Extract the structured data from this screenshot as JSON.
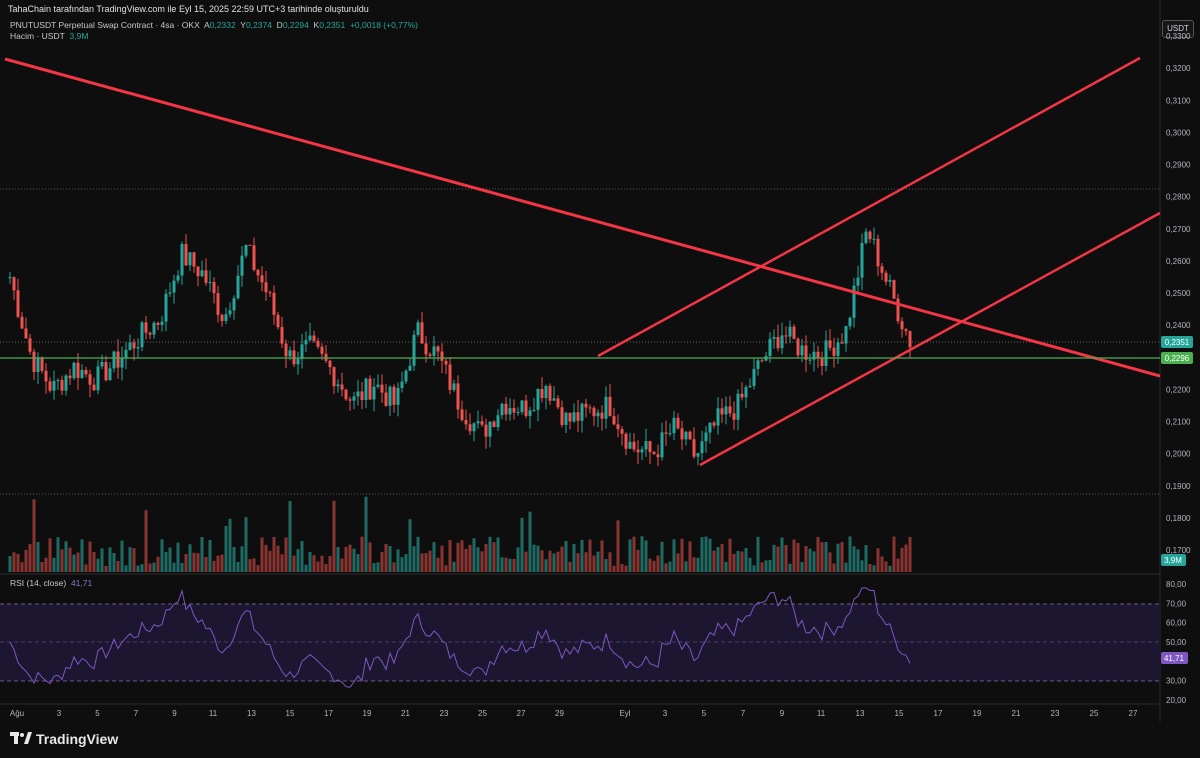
{
  "header": {
    "attribution": "TahaChain tarafından TradingView.com ile Eyl 15, 2025 22:59 UTC+3 tarihinde oluşturuldu"
  },
  "legend": {
    "symbol": "PNUTUSDT Perpetual Swap Contract · 4sa · OKX",
    "open_label": "A",
    "open": "0,2332",
    "high_label": "Y",
    "high": "0,2374",
    "low_label": "D",
    "low": "0,2294",
    "close_label": "K",
    "close": "0,2351",
    "change": "+0,0018 (+0,77%)",
    "volume_label": "Hacim · USDT",
    "volume_value": "3,9M"
  },
  "currency_button": "USDT",
  "price_axis": {
    "ticks": [
      "0,3300",
      "0,3200",
      "0,3100",
      "0,3000",
      "0,2900",
      "0,2800",
      "0,2700",
      "0,2600",
      "0,2500",
      "0,2400",
      "0,2200",
      "0,2100",
      "0,2000",
      "0,1900",
      "0,1800",
      "0,1700"
    ],
    "last_price_badge": "0,2351",
    "horizontal_line_badge": "0,2296",
    "volume_badge": "3,9M"
  },
  "rsi": {
    "label": "RSI (14, close)",
    "value": "41,71",
    "axis_ticks": [
      "80,00",
      "70,00",
      "60,00",
      "50,00",
      "30,00",
      "20,00"
    ],
    "value_badge": "41,71"
  },
  "time_axis": {
    "labels": [
      "Ağu",
      "3",
      "5",
      "7",
      "9",
      "11",
      "13",
      "15",
      "17",
      "19",
      "21",
      "23",
      "25",
      "27",
      "29",
      "Eyl",
      "3",
      "5",
      "7",
      "9",
      "11",
      "13",
      "15",
      "17",
      "19",
      "21",
      "23",
      "25",
      "27"
    ]
  },
  "branding": {
    "logo_text": "TradingView"
  },
  "colors": {
    "background": "#0e0e0e",
    "bull": "#26a69a",
    "bear": "#ef5350",
    "trendline": "#f23645",
    "horizontal_line": "#4caf50",
    "rsi_line": "#7e57c2",
    "rsi_band": "#2a1f44"
  },
  "chart_data": {
    "type": "candlestick",
    "symbol": "PNUTUSDT",
    "timeframe": "4h",
    "price_range": [
      0.165,
      0.335
    ],
    "approx_close_path": [
      {
        "date": "Aug 1",
        "close": 0.255
      },
      {
        "date": "Aug 2",
        "close": 0.23
      },
      {
        "date": "Aug 3",
        "close": 0.22
      },
      {
        "date": "Aug 5",
        "close": 0.227
      },
      {
        "date": "Aug 6",
        "close": 0.223
      },
      {
        "date": "Aug 7",
        "close": 0.229
      },
      {
        "date": "Aug 8",
        "close": 0.236
      },
      {
        "date": "Aug 9",
        "close": 0.242
      },
      {
        "date": "Aug 10",
        "close": 0.262
      },
      {
        "date": "Aug 11",
        "close": 0.256
      },
      {
        "date": "Aug 12",
        "close": 0.242
      },
      {
        "date": "Aug 13",
        "close": 0.264
      },
      {
        "date": "Aug 14",
        "close": 0.25
      },
      {
        "date": "Aug 15",
        "close": 0.23
      },
      {
        "date": "Aug 17",
        "close": 0.233
      },
      {
        "date": "Aug 18",
        "close": 0.226
      },
      {
        "date": "Aug 19",
        "close": 0.216
      },
      {
        "date": "Aug 21",
        "close": 0.222
      },
      {
        "date": "Aug 22",
        "close": 0.215
      },
      {
        "date": "Aug 23",
        "close": 0.238
      },
      {
        "date": "Aug 24",
        "close": 0.23
      },
      {
        "date": "Aug 25",
        "close": 0.215
      },
      {
        "date": "Aug 26",
        "close": 0.206
      },
      {
        "date": "Aug 27",
        "close": 0.216
      },
      {
        "date": "Aug 28",
        "close": 0.214
      },
      {
        "date": "Aug 29",
        "close": 0.222
      },
      {
        "date": "Aug 30",
        "close": 0.21
      },
      {
        "date": "Aug 31",
        "close": 0.213
      },
      {
        "date": "Sep 1",
        "close": 0.215
      },
      {
        "date": "Sep 2",
        "close": 0.202
      },
      {
        "date": "Sep 3",
        "close": 0.2
      },
      {
        "date": "Sep 4",
        "close": 0.208
      },
      {
        "date": "Sep 5",
        "close": 0.199
      },
      {
        "date": "Sep 6",
        "close": 0.21
      },
      {
        "date": "Sep 7",
        "close": 0.215
      },
      {
        "date": "Sep 8",
        "close": 0.228
      },
      {
        "date": "Sep 9",
        "close": 0.238
      },
      {
        "date": "Sep 10",
        "close": 0.232
      },
      {
        "date": "Sep 11",
        "close": 0.231
      },
      {
        "date": "Sep 12",
        "close": 0.238
      },
      {
        "date": "Sep 13",
        "close": 0.27
      },
      {
        "date": "Sep 14",
        "close": 0.252
      },
      {
        "date": "Sep 15",
        "close": 0.2351
      }
    ],
    "horizontal_level": 0.2296,
    "indicator": {
      "name": "RSI (14, close)",
      "last": 41.71,
      "levels": [
        70,
        50,
        30
      ]
    }
  }
}
